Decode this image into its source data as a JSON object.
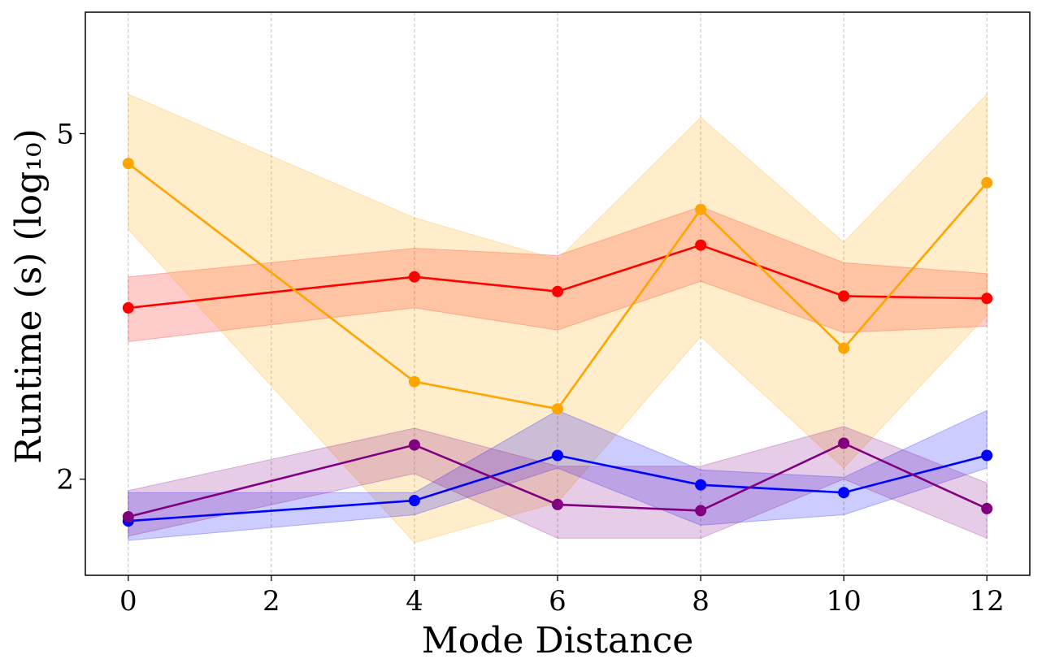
{
  "chart_data": {
    "type": "line",
    "title": "",
    "xlabel": "Mode Distance",
    "ylabel": "Runtime (s) (log₁₀)",
    "y_scale": "log10",
    "xlim": [
      -0.6,
      12.6
    ],
    "ylim": [
      1.55,
      6.9
    ],
    "x": [
      0,
      4,
      6,
      8,
      10,
      12
    ],
    "x_ticks": [
      0,
      2,
      4,
      6,
      8,
      10,
      12
    ],
    "y_ticks": [
      2,
      5
    ],
    "grid": "vertical dashed",
    "legend": "none",
    "series": [
      {
        "color": "#ff0000",
        "values": [
          3.15,
          3.42,
          3.29,
          3.72,
          3.25,
          3.23
        ],
        "band_lower": [
          2.88,
          3.15,
          2.97,
          3.38,
          2.95,
          3.0
        ],
        "band_upper": [
          3.42,
          3.69,
          3.62,
          4.12,
          3.55,
          3.45
        ]
      },
      {
        "color": "#ffa500",
        "values": [
          4.62,
          2.59,
          2.41,
          4.09,
          2.83,
          4.39
        ],
        "band_lower": [
          3.88,
          1.69,
          1.88,
          2.92,
          2.06,
          3.09
        ],
        "band_upper": [
          5.55,
          4.0,
          3.58,
          5.22,
          3.75,
          5.55
        ]
      },
      {
        "color": "#0000ff",
        "values": [
          1.79,
          1.89,
          2.13,
          1.97,
          1.93,
          2.13
        ],
        "band_lower": [
          1.7,
          1.82,
          2.06,
          1.77,
          1.82,
          2.06
        ],
        "band_upper": [
          1.93,
          1.93,
          2.4,
          2.05,
          2.01,
          2.4
        ]
      },
      {
        "color": "#800080",
        "values": [
          1.81,
          2.19,
          1.87,
          1.84,
          2.2,
          1.85
        ],
        "band_lower": [
          1.72,
          2.03,
          1.71,
          1.71,
          2.0,
          1.71
        ],
        "band_upper": [
          1.94,
          2.29,
          2.07,
          2.07,
          2.3,
          1.98
        ]
      }
    ]
  }
}
